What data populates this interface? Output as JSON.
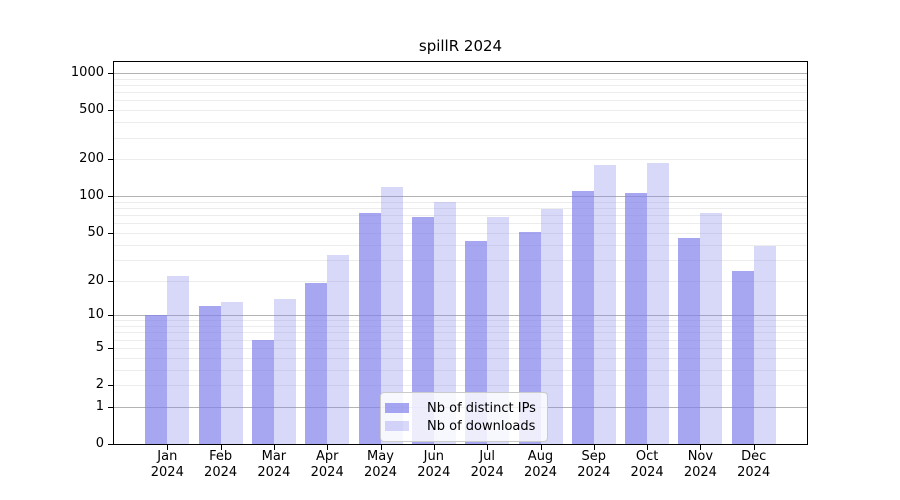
{
  "chart_data": {
    "type": "bar",
    "title": "spillR 2024",
    "categories": [
      "Jan",
      "Feb",
      "Mar",
      "Apr",
      "May",
      "Jun",
      "Jul",
      "Aug",
      "Sep",
      "Oct",
      "Nov",
      "Dec"
    ],
    "category_year": "2024",
    "series": [
      {
        "name": "Nb of distinct IPs",
        "color": "rgba(128,128,235,0.70)",
        "color_hex_on_white": "#a6a6f1",
        "values": [
          10,
          12,
          6,
          19,
          73,
          67,
          43,
          51,
          110,
          107,
          45,
          24
        ]
      },
      {
        "name": "Nb of downloads",
        "color": "rgba(128,128,235,0.31)",
        "color_hex_on_white": "#d8d8f7",
        "values": [
          22,
          13,
          14,
          33,
          118,
          89,
          68,
          78,
          181,
          186,
          73,
          39
        ]
      }
    ],
    "xlabel": "",
    "ylabel": "",
    "y_scale": "log1p",
    "ylim": [
      0,
      1250
    ],
    "yticks": [
      0,
      1,
      2,
      5,
      10,
      20,
      50,
      100,
      200,
      500,
      1000
    ],
    "grid": true,
    "grid_major": [
      1,
      10,
      100,
      1000
    ],
    "grid_minor": [
      2,
      3,
      4,
      5,
      6,
      7,
      8,
      9,
      20,
      30,
      40,
      50,
      60,
      70,
      80,
      90,
      200,
      300,
      400,
      500,
      600,
      700,
      800,
      900
    ],
    "grid_minor_color": "#ececec",
    "grid_major_color": "#b3b3b3",
    "legend_position": "lower-center"
  }
}
